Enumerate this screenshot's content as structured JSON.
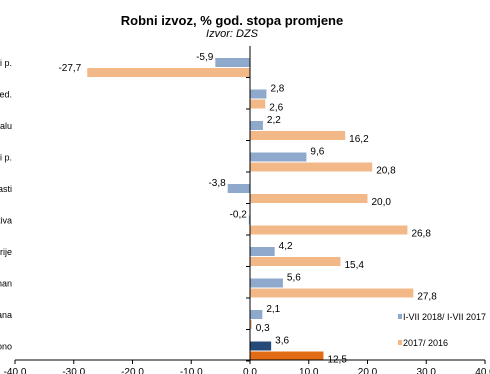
{
  "chart_data": {
    "type": "bar",
    "orientation": "horizontal",
    "title": "Robni izvoz, % god. stopa promjene",
    "subtitle": "Izvor: DZS",
    "categories": [
      "i p.",
      "ed.",
      "alu",
      "i p.",
      "asti",
      "tiva",
      "rije",
      "nan",
      "ana",
      "ono"
    ],
    "series": [
      {
        "name": "I-VII 2018/ I-VII 2017",
        "values": [
          -5.9,
          2.8,
          2.2,
          9.6,
          -3.8,
          -0.2,
          4.2,
          5.6,
          2.1,
          3.6
        ],
        "labels": [
          "-5,9",
          "2,8",
          "2,2",
          "9,6",
          "-3,8",
          "-0,2",
          "4,2",
          "5,6",
          "2,1",
          "3,6"
        ]
      },
      {
        "name": "2017/ 2016",
        "values": [
          -27.7,
          2.6,
          16.2,
          20.8,
          20.0,
          26.8,
          15.4,
          27.8,
          0.3,
          12.5
        ],
        "labels": [
          "-27,7",
          "2,6",
          "16,2",
          "20,8",
          "20,0",
          "26,8",
          "15,4",
          "27,8",
          "0,3",
          "12,5"
        ]
      }
    ],
    "colors": {
      "series1": "#8EA9CC",
      "series2": "#F3B888",
      "series1_highlight": "#254A78",
      "series2_highlight": "#E26B16",
      "axis": "#000000"
    },
    "xlim": [
      -40,
      40
    ],
    "xticks": [
      -40,
      -30,
      -20,
      -10,
      0,
      10,
      20,
      30,
      40
    ],
    "xtick_labels": [
      "-40.0",
      "-30.0",
      "-20.0",
      "-10.0",
      "0.0",
      "10.0",
      "20.0",
      "30.0",
      "40.0"
    ],
    "legend_position": "bottom-right",
    "grid": false
  }
}
